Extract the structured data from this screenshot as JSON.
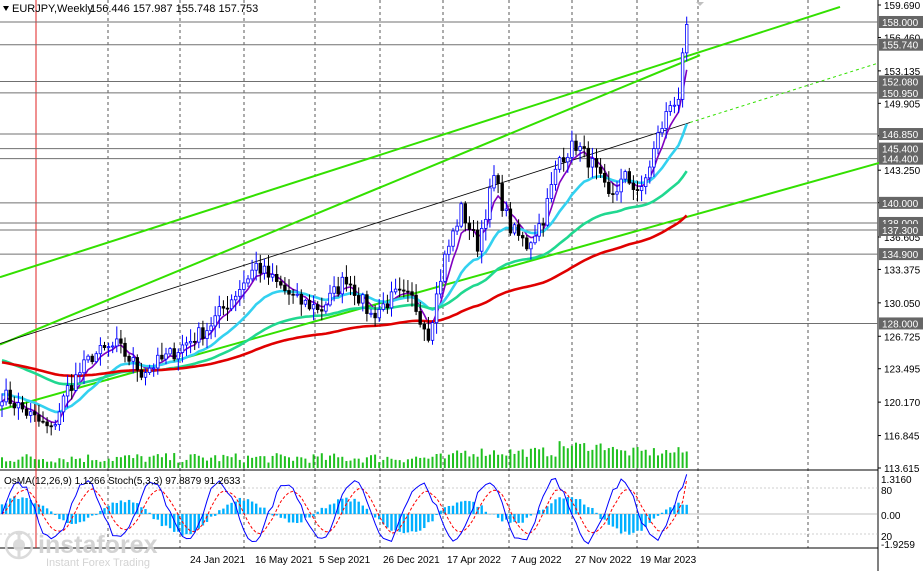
{
  "header": {
    "symbol": "EURJPY,Weekly",
    "ohlc": "156.446 157.987 155.748 157.753"
  },
  "price_axis": {
    "ticks": [
      "159.690",
      "156.460",
      "153.135",
      "149.905",
      "146.675",
      "143.250",
      "140.020",
      "136.605",
      "133.375",
      "130.050",
      "126.725",
      "123.495",
      "120.170",
      "116.845",
      "113.615"
    ],
    "levels": [
      {
        "label": "158.000",
        "value": 158.0
      },
      {
        "label": "155.740",
        "value": 155.74
      },
      {
        "label": "152.080",
        "value": 152.08
      },
      {
        "label": "150.950",
        "value": 150.95
      },
      {
        "label": "146.850",
        "value": 146.85
      },
      {
        "label": "145.400",
        "value": 145.4
      },
      {
        "label": "144.400",
        "value": 144.4
      },
      {
        "label": "140.000",
        "value": 140.0
      },
      {
        "label": "138.000",
        "value": 138.0
      },
      {
        "label": "137.300",
        "value": 137.3
      },
      {
        "label": "134.900",
        "value": 134.9
      },
      {
        "label": "128.000",
        "value": 128.0
      }
    ]
  },
  "time_axis": [
    "24 Jan 2021",
    "16 May 2021",
    "5 Sep 2021",
    "26 Dec 2021",
    "17 Apr 2022",
    "7 Aug 2022",
    "27 Nov 2022",
    "19 Mar 2023"
  ],
  "indicator": {
    "label": "OsMA(12,26,9) 1.1266  Stoch(5,3,3) 97.8879 91.2633",
    "axis_ticks": [
      "1.3160",
      "80",
      "0.00",
      "20",
      "-1.9259"
    ]
  },
  "watermark": {
    "brand": "instaforex",
    "tagline": "Instant Forex Trading"
  },
  "colors": {
    "bull_candle": "#0000ff",
    "bear_candle": "#000000",
    "ema_fast": "#8000c0",
    "ema_mid": "#33d1f0",
    "ema_slow": "#20d890",
    "ema_long": "#e00000",
    "channel": "#33e000",
    "osma": "#00b0ff",
    "stoch_main": "#0000ff",
    "stoch_signal": "#ff0000"
  }
}
